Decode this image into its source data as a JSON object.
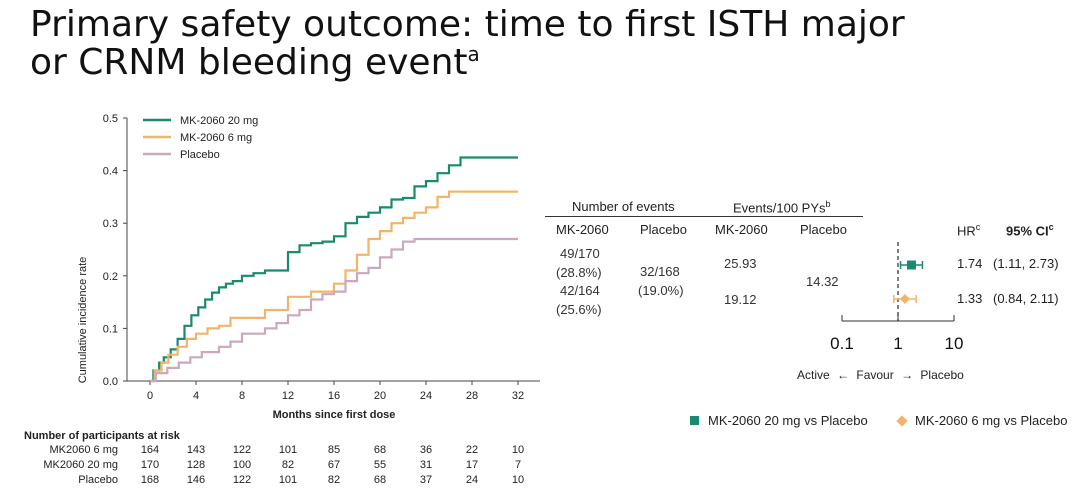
{
  "title": {
    "line1": "Primary safety outcome: time to first ISTH major",
    "line2": "or CRNM bleeding event",
    "footnote": "a"
  },
  "chart_data": {
    "type": "line",
    "xlabel": "Months since first dose",
    "ylabel": "Cumulative incidence rate",
    "xlim": [
      0,
      32
    ],
    "ylim": [
      0,
      0.5
    ],
    "xticks": [
      "0",
      "4",
      "8",
      "12",
      "16",
      "20",
      "24",
      "28",
      "32"
    ],
    "yticks": [
      "0.0",
      "0.1",
      "0.2",
      "0.3",
      "0.4",
      "0.5"
    ],
    "legend_position": "top-left",
    "series": [
      {
        "name": "MK-2060 20 mg",
        "color": "#1a8a6e",
        "x": [
          0,
          0.3,
          0.8,
          1.2,
          1.8,
          2.4,
          3,
          3.6,
          4.2,
          4.8,
          5.4,
          6,
          6.6,
          7.2,
          8,
          9,
          10,
          12,
          13,
          14,
          15,
          16,
          17,
          18,
          19,
          20,
          21,
          22,
          23,
          24,
          25,
          26,
          26.5,
          27,
          32
        ],
        "y": [
          0,
          0.02,
          0.035,
          0.045,
          0.06,
          0.08,
          0.105,
          0.125,
          0.14,
          0.155,
          0.168,
          0.178,
          0.185,
          0.19,
          0.2,
          0.205,
          0.21,
          0.245,
          0.258,
          0.262,
          0.265,
          0.275,
          0.3,
          0.312,
          0.32,
          0.33,
          0.345,
          0.348,
          0.37,
          0.38,
          0.395,
          0.41,
          0.41,
          0.425,
          0.425
        ]
      },
      {
        "name": "MK-2060 6 mg",
        "color": "#f0b56a",
        "x": [
          0,
          0.4,
          1,
          1.6,
          2.4,
          3.2,
          4,
          5,
          6,
          7,
          8,
          10,
          12,
          14,
          16,
          17,
          18,
          19,
          20,
          21,
          22,
          23,
          24,
          25,
          26,
          27,
          32
        ],
        "y": [
          0,
          0.02,
          0.035,
          0.05,
          0.065,
          0.08,
          0.09,
          0.1,
          0.105,
          0.12,
          0.12,
          0.135,
          0.16,
          0.17,
          0.185,
          0.21,
          0.24,
          0.27,
          0.285,
          0.3,
          0.31,
          0.32,
          0.33,
          0.35,
          0.36,
          0.36,
          0.36
        ]
      },
      {
        "name": "Placebo",
        "color": "#c9a9bf",
        "x": [
          0,
          0.5,
          1.5,
          2.5,
          3.5,
          4.5,
          6,
          7,
          8,
          10,
          11,
          12,
          13,
          14,
          15,
          16,
          17,
          18,
          19,
          20,
          21,
          22,
          23,
          24,
          32
        ],
        "y": [
          0,
          0.015,
          0.025,
          0.035,
          0.045,
          0.055,
          0.065,
          0.075,
          0.09,
          0.1,
          0.11,
          0.125,
          0.135,
          0.155,
          0.165,
          0.17,
          0.19,
          0.205,
          0.215,
          0.235,
          0.25,
          0.265,
          0.27,
          0.27,
          0.27
        ]
      }
    ]
  },
  "risk_table": {
    "title": "Number of participants at risk",
    "rows": [
      {
        "label": "MK2060 6 mg",
        "values": [
          "164",
          "143",
          "122",
          "101",
          "85",
          "68",
          "36",
          "22",
          "10"
        ]
      },
      {
        "label": "MK2060 20 mg",
        "values": [
          "170",
          "128",
          "100",
          "82",
          "67",
          "55",
          "31",
          "17",
          "7"
        ]
      },
      {
        "label": "Placebo",
        "values": [
          "168",
          "146",
          "122",
          "101",
          "82",
          "68",
          "37",
          "24",
          "10"
        ]
      }
    ]
  },
  "table": {
    "group_events": "Number of events",
    "group_rate": "Events/100 PYs",
    "group_rate_sup": "b",
    "col_mk": "MK-2060",
    "col_placebo": "Placebo",
    "col_rate_mk": "MK-2060",
    "col_rate_placebo": "Placebo",
    "row1_events_a": "49/170",
    "row1_events_b": "(28.8%)",
    "row2_events_a": "42/164",
    "row2_events_b": "(25.6%)",
    "placebo_events_a": "32/168",
    "placebo_events_b": "(19.0%)",
    "row1_rate": "25.93",
    "row2_rate": "19.12",
    "placebo_rate": "14.32"
  },
  "forest": {
    "hr_label": "HR",
    "hr_sup": "c",
    "ci_label": "95% CI",
    "ci_sup": "c",
    "rows": [
      {
        "hr": 1.74,
        "lo": 1.11,
        "hi": 2.73,
        "hr_text": "1.74",
        "ci_text": "(1.11, 2.73)",
        "color": "#1a8a6e"
      },
      {
        "hr": 1.33,
        "lo": 0.84,
        "hi": 2.11,
        "hr_text": "1.33",
        "ci_text": "(0.84, 2.11)",
        "color": "#f0b56a"
      }
    ],
    "ticks": [
      "0.1",
      "1",
      "10"
    ],
    "favour_left": "Active",
    "favour_mid": "Favour",
    "favour_right": "Placebo",
    "legend_20": "MK-2060 20 mg vs Placebo",
    "legend_6": "MK-2060 6 mg vs Placebo"
  }
}
